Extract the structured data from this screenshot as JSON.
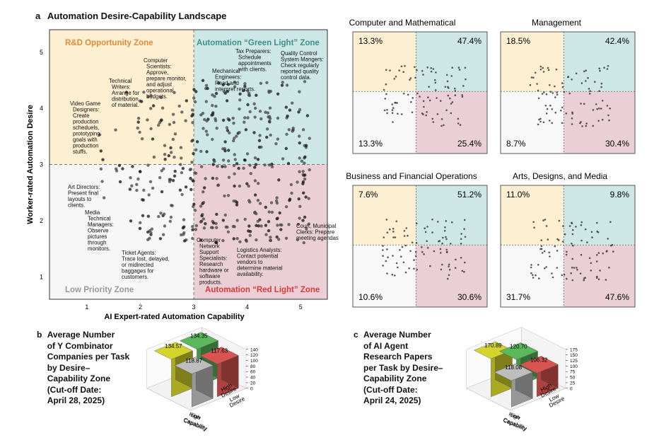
{
  "panel_a": {
    "letter": "a",
    "title": "Automation Desire-Capability Landscape",
    "xlabel": "AI Expert-rated Automation Capability",
    "ylabel": "Worker-rated Automation Desire",
    "xticks": [
      "1",
      "2",
      "3",
      "4",
      "5"
    ],
    "yticks": [
      "1",
      "2",
      "3",
      "4",
      "5"
    ],
    "zones": {
      "rd": "R&D Opportunity Zone",
      "green": "Automation “Green Light” Zone",
      "low": "Low Priority Zone",
      "red": "Automation “Red Light” Zone"
    },
    "annotations": [
      {
        "id": "cs",
        "lines": [
          "Computer",
          "Scientists:",
          "Approve,",
          "prepare monitor,",
          "and adjust",
          "operational",
          "budgets."
        ]
      },
      {
        "id": "tw",
        "lines": [
          "Technical",
          "Writers:",
          "Arrange for",
          "distribution",
          "of material."
        ]
      },
      {
        "id": "vg",
        "lines": [
          "Video Game",
          "Designers:",
          "Create",
          "production",
          "scheduels,",
          "prototyping",
          "goals with",
          "production",
          "stuffs."
        ]
      },
      {
        "id": "me",
        "lines": [
          "Mechanical",
          "Engineers:",
          "Read and",
          "interpret reports."
        ]
      },
      {
        "id": "tp",
        "lines": [
          "Tax Preparers:",
          "Schedule",
          "appointments",
          "with clients."
        ]
      },
      {
        "id": "qc",
        "lines": [
          "Quality Control",
          "System Mangers:",
          "Check regularly",
          "reported quality",
          "control data."
        ]
      },
      {
        "id": "ad",
        "lines": [
          "Art Directors:",
          "Present final",
          "layouts to",
          "clients."
        ]
      },
      {
        "id": "mt",
        "lines": [
          "Media",
          "Technical",
          "Managers:",
          "Observe",
          "pictures",
          "through",
          "monitors."
        ]
      },
      {
        "id": "ta",
        "lines": [
          "Ticket Agents:",
          "Trace lost, delayed,",
          "or midirected",
          "baggages for",
          "customers."
        ]
      },
      {
        "id": "cn",
        "lines": [
          "Computer",
          "Network",
          "Support",
          "Specialists:",
          "Research",
          "hardware or",
          "software",
          "products."
        ]
      },
      {
        "id": "la",
        "lines": [
          "Logistics Analysts:",
          "Contact potential",
          "vendors to",
          "determine material",
          "availability."
        ]
      },
      {
        "id": "cm",
        "lines": [
          "Court, Municipal",
          "Clerks: Prepare",
          "meeting agendas"
        ]
      }
    ]
  },
  "quadrant_panels": [
    {
      "title": "Computer and Mathematical",
      "tl": "13.3%",
      "tr": "47.4%",
      "bl": "13.3%",
      "br": "25.4%"
    },
    {
      "title": "Management",
      "tl": "18.5%",
      "tr": "42.4%",
      "bl": "8.7%",
      "br": "30.4%"
    },
    {
      "title": "Business and Financial Operations",
      "tl": "7.6%",
      "tr": "51.2%",
      "bl": "10.6%",
      "br": "30.6%"
    },
    {
      "title": "Arts, Designs, and Media",
      "tl": "11.0%",
      "tr": "9.8%",
      "bl": "31.7%",
      "br": "47.6%"
    }
  ],
  "panel_b": {
    "letter": "b",
    "title_lines": [
      "Average Number",
      "of Y Combinator",
      "Companies per Task",
      "by Desire–",
      "Capability Zone",
      "(Cut-off Date:",
      "April 28, 2025)"
    ],
    "x_labels": [
      "Low",
      "Capability",
      "High",
      "Capability"
    ],
    "y_labels": [
      "Low",
      "Desire",
      "High",
      "Desire"
    ],
    "zticks": [
      "140",
      "120",
      "100",
      "80",
      "60",
      "40",
      "20",
      "0"
    ]
  },
  "panel_c": {
    "letter": "c",
    "title_lines": [
      "Average Number",
      "of AI Agent",
      "Research Papers",
      "per Task by Desire–",
      "Capability Zone",
      "(Cut-off Date:",
      "April 24, 2025)"
    ],
    "x_labels": [
      "Low",
      "Capability",
      "High",
      "Capability"
    ],
    "y_labels": [
      "Low",
      "Desire",
      "High",
      "Desire"
    ],
    "zticks": [
      "175",
      "150",
      "125",
      "100",
      "75",
      "50",
      "25",
      "0"
    ]
  },
  "chart_data": [
    {
      "type": "scatter",
      "id": "landscape",
      "title": "Automation Desire-Capability Landscape",
      "xlabel": "AI Expert-rated Automation Capability",
      "ylabel": "Worker-rated Automation Desire",
      "xlim": [
        0.3,
        5.5
      ],
      "ylim": [
        0.6,
        5.4
      ],
      "threshold_x": 3,
      "threshold_y": 3
    },
    {
      "type": "scatter",
      "id": "computer_math",
      "title": "Computer and Mathematical",
      "shares": {
        "rd": "13.3%",
        "green": "47.4%",
        "low": "13.3%",
        "red": "25.4%"
      }
    },
    {
      "type": "scatter",
      "id": "management",
      "title": "Management",
      "shares": {
        "rd": "18.5%",
        "green": "42.4%",
        "low": "8.7%",
        "red": "30.4%"
      }
    },
    {
      "type": "scatter",
      "id": "business",
      "title": "Business and Financial Operations",
      "shares": {
        "rd": "7.6%",
        "green": "51.2%",
        "low": "10.6%",
        "red": "30.6%"
      }
    },
    {
      "type": "scatter",
      "id": "arts",
      "title": "Arts, Designs, and Media",
      "shares": {
        "rd": "11.0%",
        "green": "9.8%",
        "low": "31.7%",
        "red": "47.6%"
      }
    },
    {
      "type": "bar",
      "id": "yc",
      "bars": [
        {
          "zone": "rd",
          "capability": "Low",
          "desire": "High",
          "label": "134.57",
          "value": 134.57,
          "color": "#d4d42a"
        },
        {
          "zone": "low",
          "capability": "Low",
          "desire": "Low",
          "label": "118.87",
          "value": 118.87,
          "color": "#bdbdbd"
        },
        {
          "zone": "green",
          "capability": "High",
          "desire": "High",
          "label": "134.35",
          "value": 134.35,
          "color": "#5cb85c"
        },
        {
          "zone": "red",
          "capability": "High",
          "desire": "Low",
          "label": "117.63",
          "value": 117.63,
          "color": "#d9534f"
        }
      ],
      "zlim": [
        0,
        140
      ]
    },
    {
      "type": "bar",
      "id": "papers",
      "bars": [
        {
          "zone": "rd",
          "capability": "Low",
          "desire": "High",
          "label": "170.89",
          "value": 170.89,
          "color": "#d4d42a"
        },
        {
          "zone": "low",
          "capability": "Low",
          "desire": "Low",
          "label": "118.08",
          "value": 118.08,
          "color": "#bdbdbd"
        },
        {
          "zone": "green",
          "capability": "High",
          "desire": "High",
          "label": "120.70",
          "value": 120.7,
          "color": "#5cb85c"
        },
        {
          "zone": "red",
          "capability": "High",
          "desire": "Low",
          "label": "106.32",
          "value": 106.32,
          "color": "#d9534f"
        }
      ],
      "zlim": [
        0,
        175
      ]
    }
  ]
}
